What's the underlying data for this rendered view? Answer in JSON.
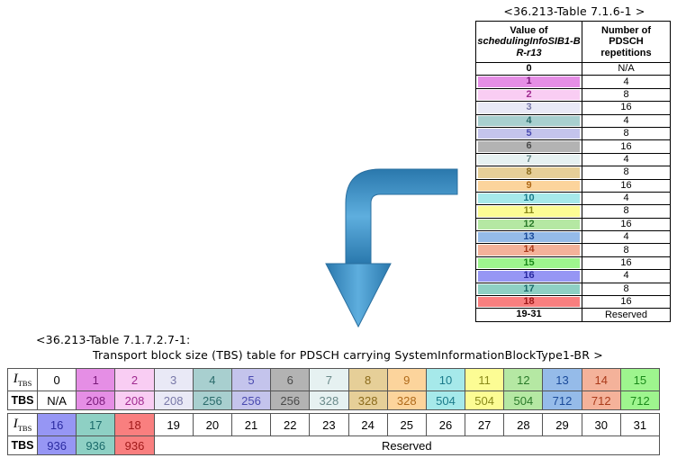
{
  "table1": {
    "caption": "<36.213-Table 7.1.6-1 >",
    "header_col1_line1": "Value of",
    "header_col1_line2": "schedulingInfoSIB1-BR-r13",
    "header_col2": "Number of PDSCH repetitions",
    "rows": [
      {
        "value": "0",
        "reps": "N/A",
        "color": "#ffffff",
        "text": "#000000"
      },
      {
        "value": "1",
        "reps": "4",
        "color": "#e58ee5",
        "text": "#7a1a7a"
      },
      {
        "value": "2",
        "reps": "8",
        "color": "#f9cdf3",
        "text": "#a02a90"
      },
      {
        "value": "3",
        "reps": "16",
        "color": "#e9e9f6",
        "text": "#7878a8"
      },
      {
        "value": "4",
        "reps": "4",
        "color": "#a8cfcf",
        "text": "#2a6b6b"
      },
      {
        "value": "5",
        "reps": "8",
        "color": "#c4c4ec",
        "text": "#4a4ab0"
      },
      {
        "value": "6",
        "reps": "16",
        "color": "#b3b3b3",
        "text": "#4a4a4a"
      },
      {
        "value": "7",
        "reps": "4",
        "color": "#e6f1f1",
        "text": "#6a8a8a"
      },
      {
        "value": "8",
        "reps": "8",
        "color": "#e6cf98",
        "text": "#8a6a1a"
      },
      {
        "value": "9",
        "reps": "16",
        "color": "#fcd49c",
        "text": "#b06a1a"
      },
      {
        "value": "10",
        "reps": "4",
        "color": "#a6e9ea",
        "text": "#1a7a8a"
      },
      {
        "value": "11",
        "reps": "8",
        "color": "#fcfc94",
        "text": "#8a8a1a"
      },
      {
        "value": "12",
        "reps": "16",
        "color": "#b5e8a3",
        "text": "#2a7a2a"
      },
      {
        "value": "13",
        "reps": "4",
        "color": "#95bbe9",
        "text": "#1a4a9a"
      },
      {
        "value": "14",
        "reps": "8",
        "color": "#f4b29a",
        "text": "#aa3a1a"
      },
      {
        "value": "15",
        "reps": "16",
        "color": "#9ef58e",
        "text": "#1a8a1a"
      },
      {
        "value": "16",
        "reps": "4",
        "color": "#9696f4",
        "text": "#2a2aa0"
      },
      {
        "value": "17",
        "reps": "8",
        "color": "#8ed0c4",
        "text": "#1a6a6a"
      },
      {
        "value": "18",
        "reps": "16",
        "color": "#f97f7f",
        "text": "#a01a1a"
      },
      {
        "value": "19-31",
        "reps": "Reserved",
        "color": "#ffffff",
        "text": "#000000"
      }
    ]
  },
  "table2": {
    "caption_line1": "<36.213-Table 7.1.7.2.7-1:",
    "caption_line2": "Transport block size (TBS) table for PDSCH carrying SystemInformationBlockType1-BR >",
    "itbs_label": "I",
    "itbs_sub": "TBS",
    "tbs_label": "TBS",
    "row1": [
      {
        "i": "0",
        "tbs": "N/A",
        "color": "#ffffff",
        "text": "#000000"
      },
      {
        "i": "1",
        "tbs": "208",
        "color": "#e58ee5",
        "text": "#7a1a7a"
      },
      {
        "i": "2",
        "tbs": "208",
        "color": "#f9cdf3",
        "text": "#a02a90"
      },
      {
        "i": "3",
        "tbs": "208",
        "color": "#e9e9f6",
        "text": "#7878a8"
      },
      {
        "i": "4",
        "tbs": "256",
        "color": "#a8cfcf",
        "text": "#2a6b6b"
      },
      {
        "i": "5",
        "tbs": "256",
        "color": "#c4c4ec",
        "text": "#4a4ab0"
      },
      {
        "i": "6",
        "tbs": "256",
        "color": "#b3b3b3",
        "text": "#4a4a4a"
      },
      {
        "i": "7",
        "tbs": "328",
        "color": "#e6f1f1",
        "text": "#6a8a8a"
      },
      {
        "i": "8",
        "tbs": "328",
        "color": "#e6cf98",
        "text": "#8a6a1a"
      },
      {
        "i": "9",
        "tbs": "328",
        "color": "#fcd49c",
        "text": "#b06a1a"
      },
      {
        "i": "10",
        "tbs": "504",
        "color": "#a6e9ea",
        "text": "#1a7a8a"
      },
      {
        "i": "11",
        "tbs": "504",
        "color": "#fcfc94",
        "text": "#8a8a1a"
      },
      {
        "i": "12",
        "tbs": "504",
        "color": "#b5e8a3",
        "text": "#2a7a2a"
      },
      {
        "i": "13",
        "tbs": "712",
        "color": "#95bbe9",
        "text": "#1a4a9a"
      },
      {
        "i": "14",
        "tbs": "712",
        "color": "#f4b29a",
        "text": "#aa3a1a"
      },
      {
        "i": "15",
        "tbs": "712",
        "color": "#9ef58e",
        "text": "#1a8a1a"
      }
    ],
    "row2": [
      {
        "i": "16",
        "tbs": "936",
        "color": "#9696f4",
        "text": "#2a2aa0"
      },
      {
        "i": "17",
        "tbs": "936",
        "color": "#8ed0c4",
        "text": "#1a6a6a"
      },
      {
        "i": "18",
        "tbs": "936",
        "color": "#f97f7f",
        "text": "#a01a1a"
      },
      {
        "i": "19",
        "color": "#ffffff",
        "text": "#000000"
      },
      {
        "i": "20",
        "color": "#ffffff",
        "text": "#000000"
      },
      {
        "i": "21",
        "color": "#ffffff",
        "text": "#000000"
      },
      {
        "i": "22",
        "color": "#ffffff",
        "text": "#000000"
      },
      {
        "i": "23",
        "color": "#ffffff",
        "text": "#000000"
      },
      {
        "i": "24",
        "color": "#ffffff",
        "text": "#000000"
      },
      {
        "i": "25",
        "color": "#ffffff",
        "text": "#000000"
      },
      {
        "i": "26",
        "color": "#ffffff",
        "text": "#000000"
      },
      {
        "i": "27",
        "color": "#ffffff",
        "text": "#000000"
      },
      {
        "i": "28",
        "color": "#ffffff",
        "text": "#000000"
      },
      {
        "i": "29",
        "color": "#ffffff",
        "text": "#000000"
      },
      {
        "i": "30",
        "color": "#ffffff",
        "text": "#000000"
      },
      {
        "i": "31",
        "color": "#ffffff",
        "text": "#000000"
      }
    ],
    "reserved_label": "Reserved"
  },
  "arrow": {
    "color": "#3d8fc2",
    "icon": "curved-down-arrow-icon"
  }
}
